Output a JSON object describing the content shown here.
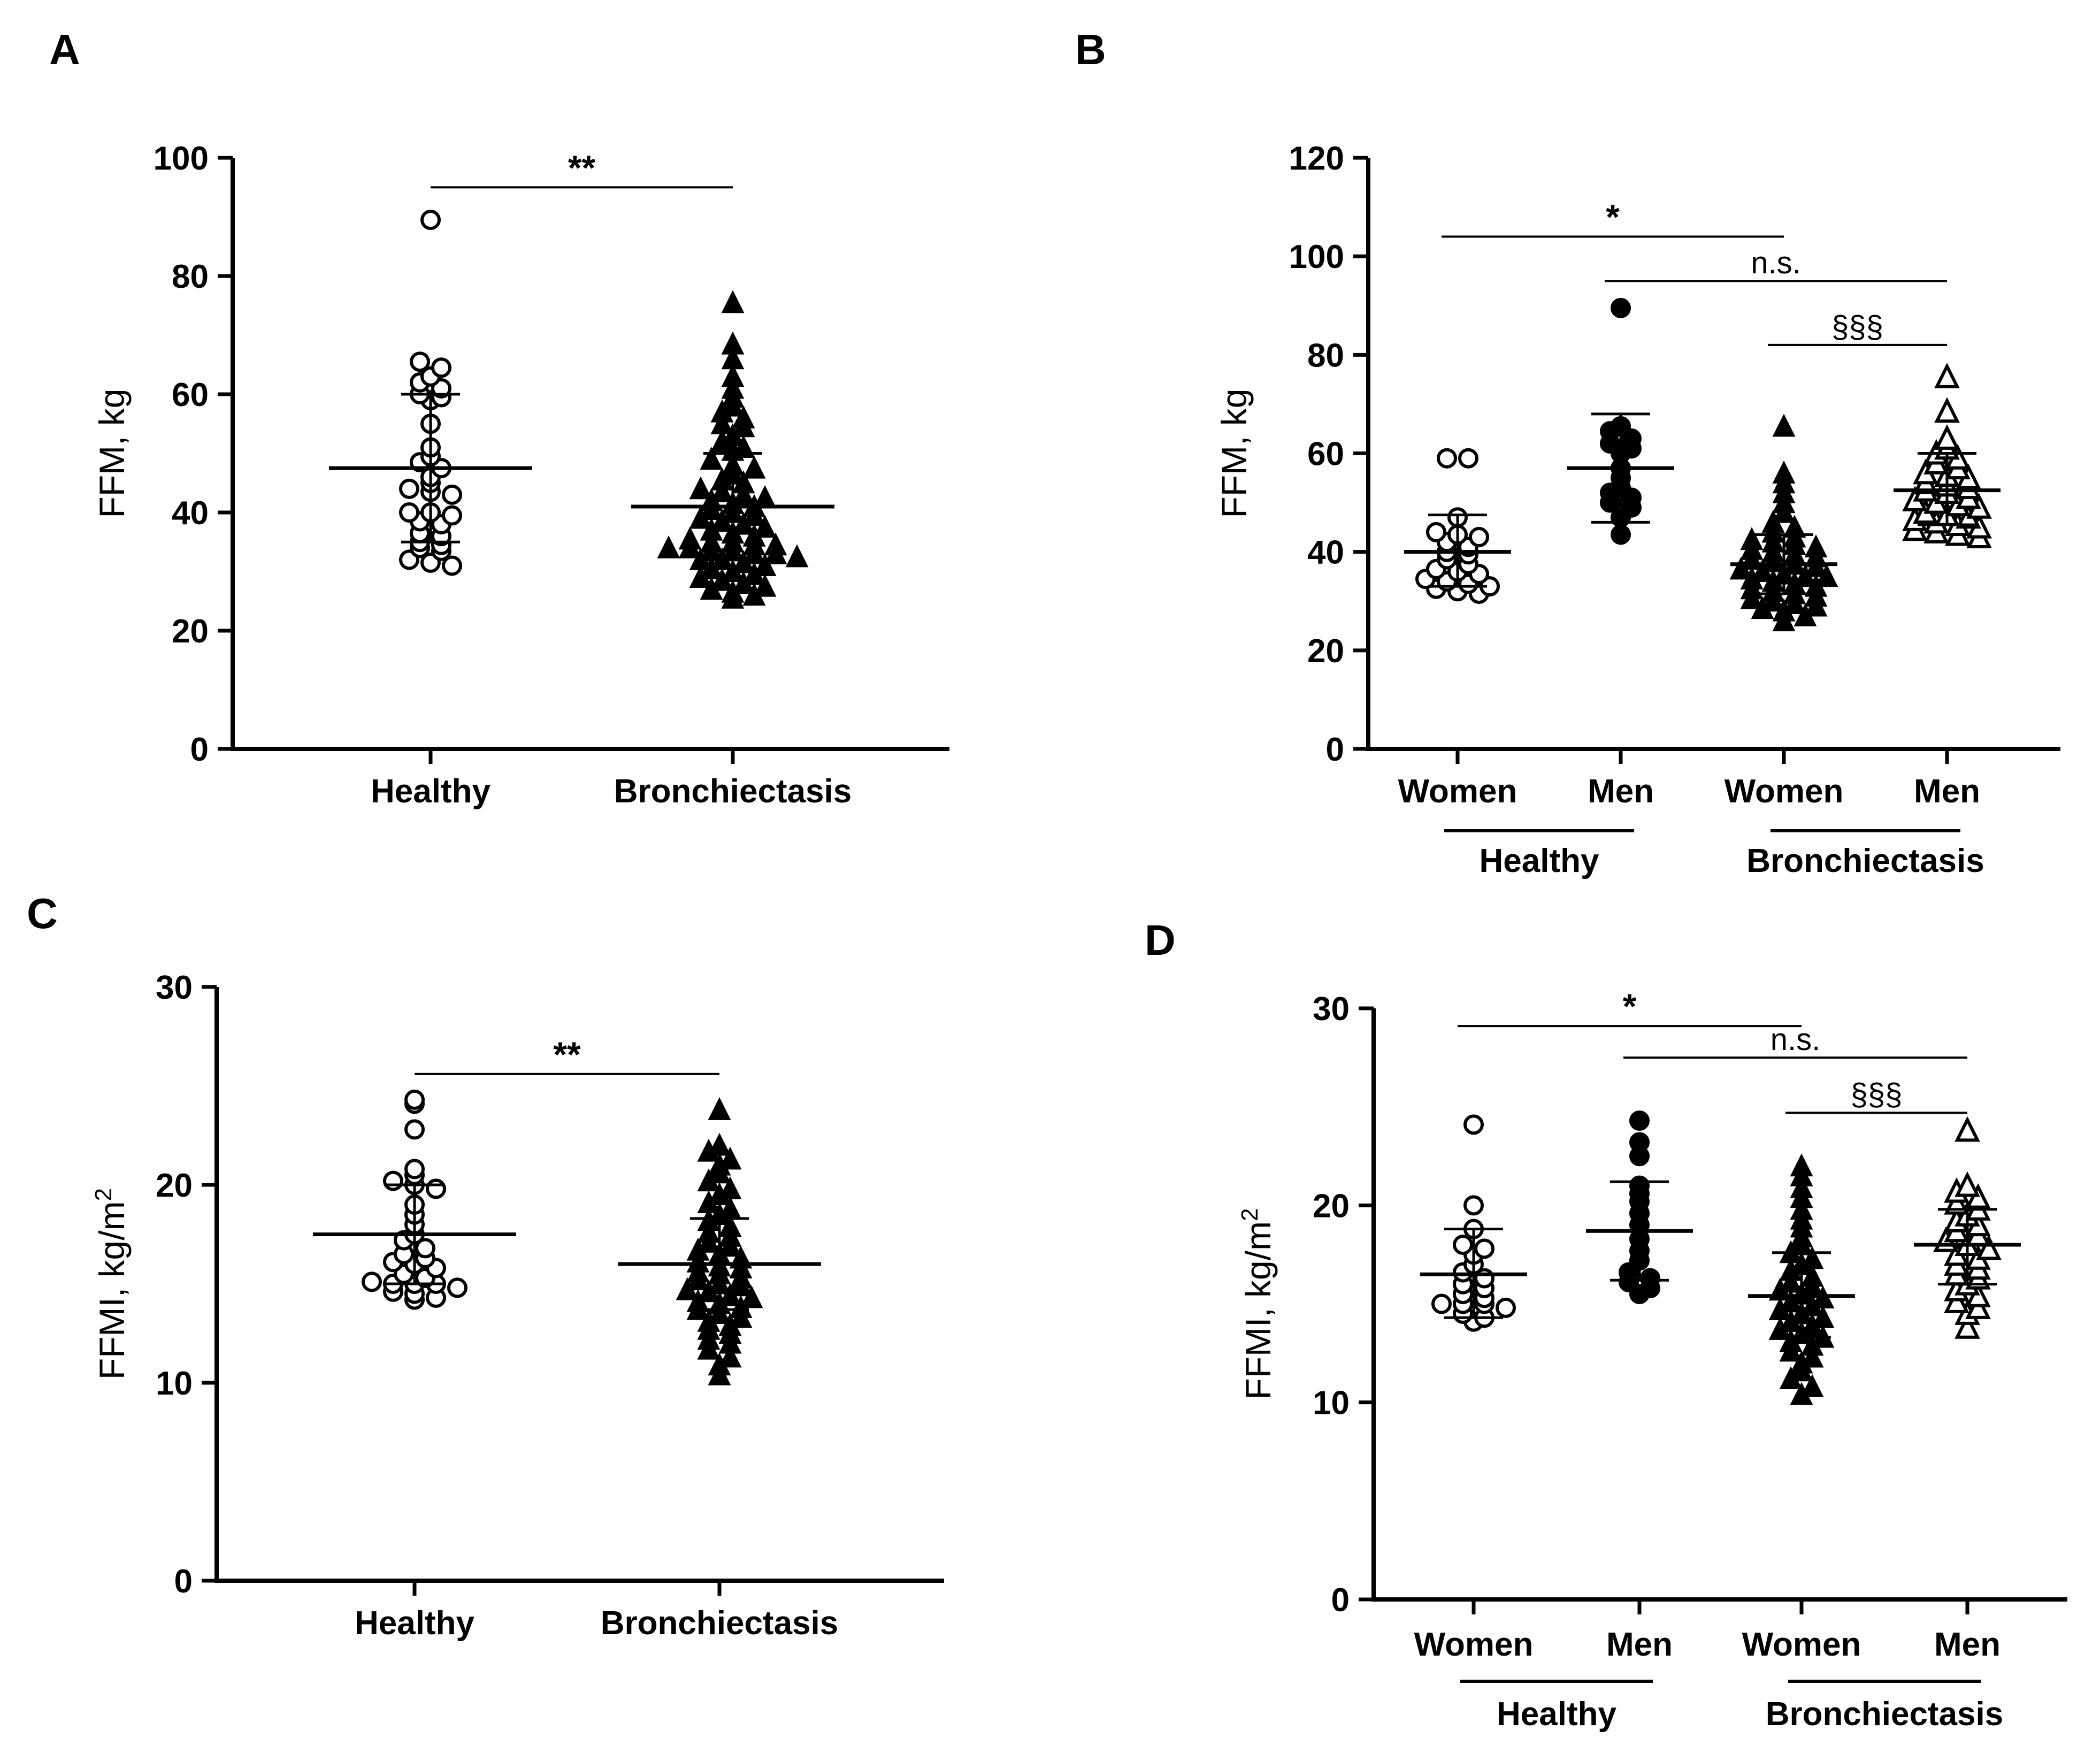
{
  "colors": {
    "ink": "#000000",
    "background": "#ffffff"
  },
  "chart_data": [
    {
      "panel": "A",
      "type": "scatter",
      "subtype": "dot-plot-mean-sd",
      "ylabel": "FFM, kg",
      "ylabel_sup": "",
      "ylim": [
        0,
        100
      ],
      "yticks": [
        0,
        20,
        40,
        60,
        80,
        100
      ],
      "categories": [
        "Healthy",
        "Bronchiectasis"
      ],
      "groups": [],
      "series": [
        {
          "name": "Healthy",
          "marker": "circle-open",
          "mean": 47.5,
          "sd_low": 35.0,
          "sd_high": 60.0,
          "values": [
            89.5,
            65.5,
            64.5,
            63.0,
            62.0,
            61.0,
            60.0,
            59.5,
            59.0,
            55.0,
            51.0,
            49.5,
            48.5,
            47.5,
            46.0,
            45.0,
            44.0,
            43.5,
            43.0,
            40.0,
            40.0,
            39.5,
            38.5,
            38.0,
            36.5,
            36.0,
            35.0,
            34.5,
            34.0,
            33.5,
            32.0,
            31.5,
            31.0
          ]
        },
        {
          "name": "Bronchiectasis",
          "marker": "triangle-filled",
          "mean": 41.0,
          "sd_low": 32.0,
          "sd_high": 50.0,
          "values": [
            75.5,
            68.5,
            66.0,
            63.0,
            61.0,
            59.5,
            58.0,
            57.0,
            56.0,
            55.0,
            54.5,
            53.0,
            52.0,
            51.0,
            50.5,
            49.0,
            48.0,
            47.5,
            46.5,
            45.5,
            45.0,
            44.0,
            43.5,
            43.0,
            42.5,
            42.0,
            41.5,
            41.0,
            40.5,
            40.0,
            39.5,
            39.0,
            38.5,
            38.0,
            37.5,
            37.0,
            36.5,
            36.0,
            35.5,
            35.0,
            35.0,
            34.5,
            34.5,
            34.0,
            34.0,
            33.5,
            33.5,
            33.0,
            33.0,
            32.5,
            32.0,
            32.0,
            31.5,
            31.0,
            30.5,
            30.0,
            29.5,
            29.0,
            28.5,
            28.0,
            27.5,
            27.0,
            26.5,
            26.0,
            25.5
          ]
        }
      ],
      "annotations": [
        {
          "from": 0,
          "to": 1,
          "y": 95,
          "text": "**",
          "style": "star"
        }
      ]
    },
    {
      "panel": "B",
      "type": "scatter",
      "subtype": "dot-plot-mean-sd",
      "ylabel": "FFM, kg",
      "ylabel_sup": "",
      "ylim": [
        0,
        120
      ],
      "yticks": [
        0,
        20,
        40,
        60,
        80,
        100,
        120
      ],
      "categories": [
        "Women",
        "Men",
        "Women",
        "Men"
      ],
      "groups": [
        {
          "label": "Healthy",
          "from": 0,
          "to": 1
        },
        {
          "label": "Bronchiectasis",
          "from": 2,
          "to": 3
        }
      ],
      "series": [
        {
          "name": "Healthy Women",
          "marker": "circle-open",
          "mean": 40.0,
          "sd_low": 33.0,
          "sd_high": 47.5,
          "values": [
            59.0,
            59.0,
            47.0,
            44.0,
            43.5,
            43.0,
            42.0,
            41.0,
            40.0,
            39.5,
            38.5,
            37.5,
            36.5,
            36.0,
            35.5,
            34.5,
            34.0,
            33.5,
            33.0,
            32.5,
            32.0,
            31.5
          ]
        },
        {
          "name": "Healthy Men",
          "marker": "circle-filled",
          "mean": 57.0,
          "sd_low": 46.0,
          "sd_high": 68.0,
          "values": [
            89.5,
            65.5,
            64.5,
            63.0,
            62.0,
            61.0,
            60.0,
            57.0,
            55.0,
            53.0,
            52.0,
            51.0,
            50.0,
            49.0,
            47.0,
            43.5
          ]
        },
        {
          "name": "Bronchiectasis Women",
          "marker": "triangle-filled",
          "mean": 37.5,
          "sd_low": 31.5,
          "sd_high": 43.5,
          "values": [
            65.5,
            56.0,
            54.0,
            52.0,
            50.0,
            48.0,
            46.0,
            45.0,
            44.0,
            43.0,
            42.5,
            42.0,
            41.5,
            41.0,
            40.5,
            40.0,
            39.5,
            39.0,
            38.5,
            38.0,
            37.5,
            37.0,
            36.5,
            36.0,
            35.5,
            35.0,
            35.0,
            34.5,
            34.0,
            33.5,
            33.0,
            32.5,
            32.0,
            31.5,
            31.0,
            30.5,
            30.0,
            29.5,
            29.0,
            28.5,
            28.0,
            27.0,
            26.0
          ]
        },
        {
          "name": "Bronchiectasis Men",
          "marker": "triangle-open",
          "mean": 52.5,
          "sd_low": 45.5,
          "sd_high": 60.0,
          "values": [
            75.5,
            68.5,
            63.0,
            61.0,
            60.0,
            59.0,
            58.0,
            57.0,
            56.0,
            55.5,
            55.0,
            54.0,
            53.5,
            53.0,
            52.5,
            52.0,
            51.0,
            50.5,
            50.0,
            49.5,
            49.0,
            48.0,
            47.5,
            47.0,
            46.5,
            46.0,
            45.5,
            45.0,
            44.5,
            44.0,
            43.5,
            43.0
          ]
        }
      ],
      "annotations": [
        {
          "from": 0,
          "to": 2,
          "y": 104,
          "text": "*",
          "style": "star"
        },
        {
          "from": 1,
          "to": 3,
          "y": 95,
          "text": "n.s.",
          "style": "text"
        },
        {
          "from": 2,
          "to": 3,
          "y": 82,
          "text": "§§§",
          "style": "text"
        }
      ]
    },
    {
      "panel": "C",
      "type": "scatter",
      "subtype": "dot-plot-mean-sd",
      "ylabel": "FFMI, kg/m",
      "ylabel_sup": "2",
      "ylim": [
        0,
        30
      ],
      "yticks": [
        0,
        10,
        20,
        30
      ],
      "categories": [
        "Healthy",
        "Bronchiectasis"
      ],
      "groups": [],
      "series": [
        {
          "name": "Healthy",
          "marker": "circle-open",
          "mean": 17.5,
          "sd_low": 15.0,
          "sd_high": 20.0,
          "values": [
            24.3,
            24.1,
            22.8,
            20.8,
            20.5,
            20.2,
            20.0,
            19.8,
            19.0,
            18.5,
            18.0,
            17.5,
            17.2,
            16.8,
            16.5,
            16.3,
            16.1,
            16.0,
            15.8,
            15.5,
            15.3,
            15.1,
            15.0,
            15.0,
            15.0,
            14.8,
            14.6,
            14.5,
            14.3,
            14.2
          ]
        },
        {
          "name": "Bronchiectasis",
          "marker": "triangle-filled",
          "mean": 16.0,
          "sd_low": 13.7,
          "sd_high": 18.3,
          "values": [
            23.8,
            22.0,
            21.7,
            21.3,
            21.0,
            20.6,
            20.2,
            19.8,
            19.5,
            19.1,
            18.8,
            18.5,
            18.2,
            17.9,
            17.6,
            17.4,
            17.1,
            16.9,
            16.7,
            16.5,
            16.3,
            16.1,
            15.9,
            15.8,
            15.6,
            15.5,
            15.3,
            15.2,
            15.0,
            14.9,
            14.7,
            14.6,
            14.4,
            14.3,
            14.1,
            14.0,
            13.8,
            13.7,
            13.5,
            13.3,
            13.1,
            12.9,
            12.7,
            12.5,
            12.2,
            12.0,
            11.7,
            11.3,
            10.9,
            10.4
          ]
        }
      ],
      "annotations": [
        {
          "from": 0,
          "to": 1,
          "y": 25.6,
          "text": "**",
          "style": "star"
        }
      ]
    },
    {
      "panel": "D",
      "type": "scatter",
      "subtype": "dot-plot-mean-sd",
      "ylabel": "FFMI, kg/m",
      "ylabel_sup": "2",
      "ylim": [
        0,
        30
      ],
      "yticks": [
        0,
        10,
        20,
        30
      ],
      "categories": [
        "Women",
        "Men",
        "Women",
        "Men"
      ],
      "groups": [
        {
          "label": "Healthy",
          "from": 0,
          "to": 1
        },
        {
          "label": "Bronchiectasis",
          "from": 2,
          "to": 3
        }
      ],
      "series": [
        {
          "name": "Healthy Women",
          "marker": "circle-open",
          "mean": 16.5,
          "sd_low": 14.3,
          "sd_high": 18.8,
          "values": [
            24.1,
            20.0,
            18.8,
            18.0,
            17.8,
            17.5,
            17.0,
            16.6,
            16.3,
            16.0,
            15.8,
            15.5,
            15.3,
            15.0,
            15.0,
            15.0,
            14.8,
            14.5,
            14.3,
            14.1
          ]
        },
        {
          "name": "Healthy Men",
          "marker": "circle-filled",
          "mean": 18.7,
          "sd_low": 16.2,
          "sd_high": 21.2,
          "values": [
            24.3,
            23.2,
            22.5,
            21.0,
            20.6,
            20.2,
            19.6,
            19.0,
            18.3,
            17.7,
            17.2,
            16.6,
            16.3,
            16.1,
            15.8,
            15.5
          ]
        },
        {
          "name": "Bronchiectasis Women",
          "marker": "triangle-filled",
          "mean": 15.4,
          "sd_low": 13.3,
          "sd_high": 17.6,
          "values": [
            22.0,
            21.5,
            20.9,
            20.4,
            19.8,
            19.3,
            18.9,
            18.4,
            18.0,
            17.6,
            17.3,
            17.0,
            16.7,
            16.4,
            16.1,
            15.9,
            15.7,
            15.5,
            15.3,
            15.1,
            14.9,
            14.7,
            14.5,
            14.3,
            14.1,
            13.9,
            13.7,
            13.5,
            13.3,
            13.1,
            12.9,
            12.6,
            12.3,
            12.0,
            11.6,
            11.2,
            10.8,
            10.4
          ]
        },
        {
          "name": "Bronchiectasis Men",
          "marker": "triangle-open",
          "mean": 18.0,
          "sd_low": 16.0,
          "sd_high": 19.8,
          "values": [
            23.8,
            21.0,
            20.7,
            20.4,
            20.1,
            19.8,
            19.5,
            19.2,
            19.0,
            18.7,
            18.5,
            18.2,
            18.0,
            17.8,
            17.5,
            17.3,
            17.0,
            16.8,
            16.5,
            16.3,
            16.0,
            15.7,
            15.4,
            15.1,
            14.8,
            14.5,
            13.8
          ]
        }
      ],
      "annotations": [
        {
          "from": 0,
          "to": 2,
          "y": 29.1,
          "text": "*",
          "style": "star"
        },
        {
          "from": 1,
          "to": 3,
          "y": 27.5,
          "text": "n.s.",
          "style": "text"
        },
        {
          "from": 2,
          "to": 3,
          "y": 24.7,
          "text": "§§§",
          "style": "text"
        }
      ]
    }
  ]
}
